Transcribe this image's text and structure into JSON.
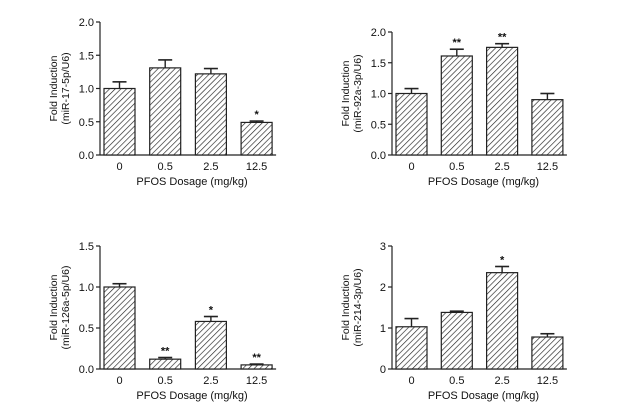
{
  "chart_data": [
    {
      "type": "bar",
      "categories": [
        "0",
        "0.5",
        "2.5",
        "12.5"
      ],
      "values": [
        1.0,
        1.31,
        1.22,
        0.49
      ],
      "errors": [
        0.1,
        0.12,
        0.08,
        0.02
      ],
      "significance": [
        "",
        "",
        "",
        "*"
      ],
      "ylabel_line1": "Fold Induction",
      "ylabel_line2": "(miR-17-5p/U6)",
      "xlabel": "PFOS Dosage (mg/kg)",
      "ylim": [
        0,
        2.0
      ],
      "yticks": [
        "0.0",
        "0.5",
        "1.0",
        "1.5",
        "2.0"
      ],
      "ytick_values": [
        0,
        0.5,
        1.0,
        1.5,
        2.0
      ]
    },
    {
      "type": "bar",
      "categories": [
        "0",
        "0.5",
        "2.5",
        "12.5"
      ],
      "values": [
        1.0,
        1.61,
        1.75,
        0.9
      ],
      "errors": [
        0.08,
        0.11,
        0.06,
        0.1
      ],
      "significance": [
        "",
        "**",
        "**",
        ""
      ],
      "ylabel_line1": "Fold Induction",
      "ylabel_line2": "(miR-92a-3p/U6)",
      "xlabel": "PFOS Dosage (mg/kg)",
      "ylim": [
        0,
        2.0
      ],
      "yticks": [
        "0.0",
        "0.5",
        "1.0",
        "1.5",
        "2.0"
      ],
      "ytick_values": [
        0,
        0.5,
        1.0,
        1.5,
        2.0
      ]
    },
    {
      "type": "bar",
      "categories": [
        "0",
        "0.5",
        "2.5",
        "12.5"
      ],
      "values": [
        1.0,
        0.12,
        0.58,
        0.05
      ],
      "errors": [
        0.04,
        0.02,
        0.06,
        0.01
      ],
      "significance": [
        "",
        "**",
        "*",
        "**"
      ],
      "ylabel_line1": "Fold Induction",
      "ylabel_line2": "(miR-126a-5p/U6)",
      "xlabel": "PFOS Dosage (mg/kg)",
      "ylim": [
        0,
        1.5
      ],
      "yticks": [
        "0.0",
        "0.5",
        "1.0",
        "1.5"
      ],
      "ytick_values": [
        0,
        0.5,
        1.0,
        1.5
      ]
    },
    {
      "type": "bar",
      "categories": [
        "0",
        "0.5",
        "2.5",
        "12.5"
      ],
      "values": [
        1.03,
        1.38,
        2.35,
        0.78
      ],
      "errors": [
        0.2,
        0.03,
        0.15,
        0.08
      ],
      "significance": [
        "",
        "",
        "*",
        ""
      ],
      "ylabel_line1": "Fold Induction",
      "ylabel_line2": "(miR-214-3p/U6)",
      "xlabel": "PFOS Dosage (mg/kg)",
      "ylim": [
        0,
        3
      ],
      "yticks": [
        "0",
        "1",
        "2",
        "3"
      ],
      "ytick_values": [
        0,
        1,
        2,
        3
      ]
    }
  ]
}
